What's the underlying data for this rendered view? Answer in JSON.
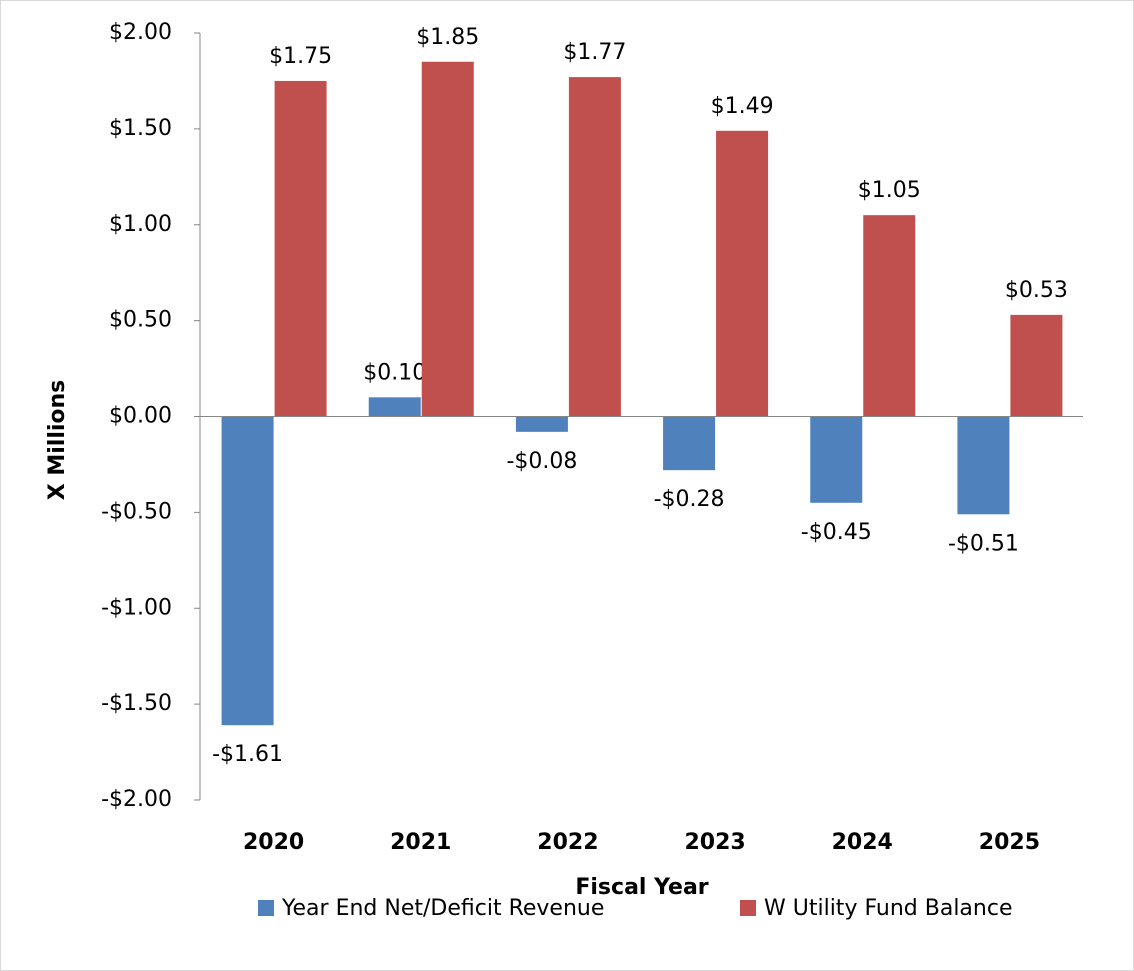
{
  "chart_data": {
    "type": "bar",
    "x_label": "Fiscal Year",
    "y_label": "X Millions",
    "categories": [
      "2020",
      "2021",
      "2022",
      "2023",
      "2024",
      "2025"
    ],
    "series": [
      {
        "name": "Year End Net/Deficit Revenue",
        "color": "#4f81bd",
        "values": [
          -1.61,
          0.1,
          -0.08,
          -0.28,
          -0.45,
          -0.51
        ],
        "value_labels": [
          "-$1.61",
          "$0.10",
          "-$0.08",
          "-$0.28",
          "-$0.45",
          "-$0.51"
        ]
      },
      {
        "name": "W Utility Fund Balance",
        "color": "#c0504d",
        "values": [
          1.75,
          1.85,
          1.77,
          1.49,
          1.05,
          0.53
        ],
        "value_labels": [
          "$1.75",
          "$1.85",
          "$1.77",
          "$1.49",
          "$1.05",
          "$0.53"
        ]
      }
    ],
    "ylim": [
      -2,
      2
    ],
    "yticks": [
      {
        "value": -2,
        "label": "-$2.00"
      },
      {
        "value": -1.5,
        "label": "-$1.50"
      },
      {
        "value": -1,
        "label": "-$1.00"
      },
      {
        "value": -0.5,
        "label": "-$0.50"
      },
      {
        "value": 0,
        "label": "$0.00"
      },
      {
        "value": 0.5,
        "label": "$0.50"
      },
      {
        "value": 1,
        "label": "$1.00"
      },
      {
        "value": 1.5,
        "label": "$1.50"
      },
      {
        "value": 2,
        "label": "$2.00"
      }
    ],
    "legend": "bottom"
  }
}
